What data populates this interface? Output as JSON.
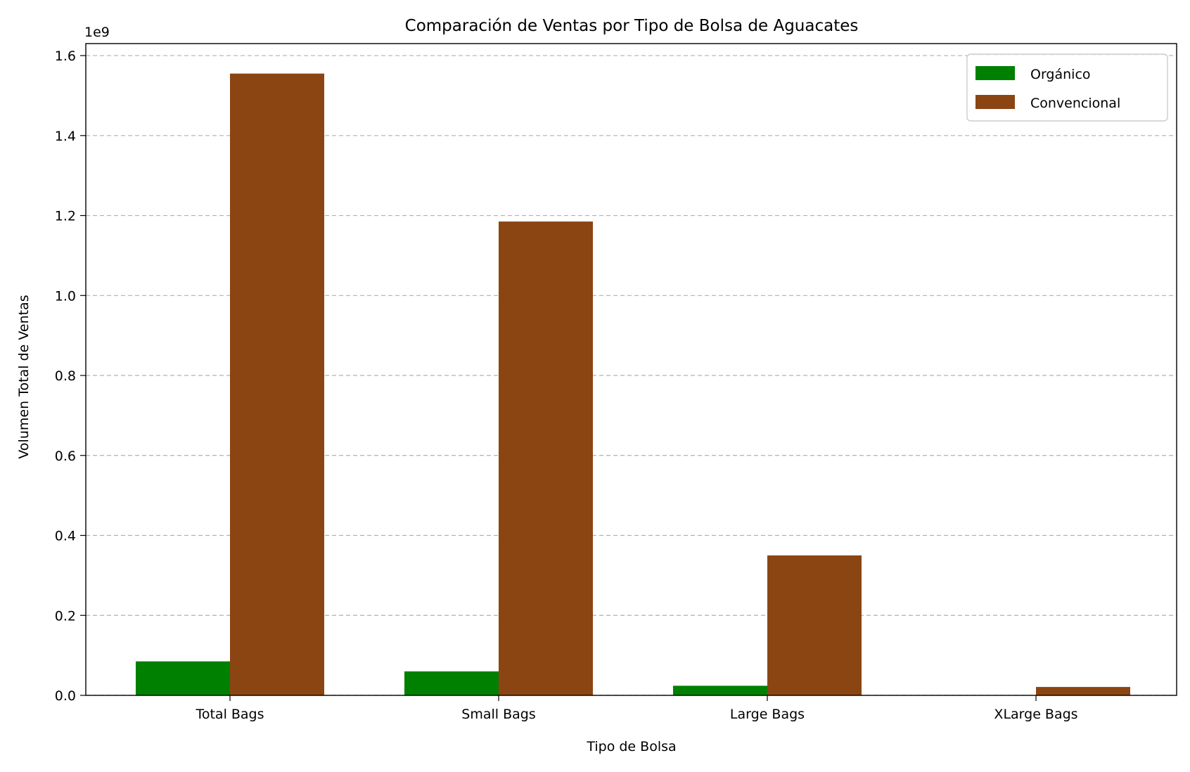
{
  "chart_data": {
    "type": "bar",
    "title": "Comparación de Ventas por Tipo de Bolsa de Aguacates",
    "xlabel": "Tipo de Bolsa",
    "ylabel": "Volumen Total de Ventas",
    "y_offset_label": "1e9",
    "categories": [
      "Total Bags",
      "Small Bags",
      "Large Bags",
      "XLarge Bags"
    ],
    "series": [
      {
        "name": "Orgánico",
        "color": "#008000",
        "values": [
          85000000,
          60000000,
          24000000,
          800000
        ]
      },
      {
        "name": "Convencional",
        "color": "#8b4513",
        "values": [
          1555000000,
          1185000000,
          350000000,
          21000000
        ]
      }
    ],
    "ylim": [
      0,
      1630000000
    ],
    "yticks": [
      0,
      200000000,
      400000000,
      600000000,
      800000000,
      1000000000,
      1200000000,
      1400000000,
      1600000000
    ],
    "ytick_labels": [
      "0.0",
      "0.2",
      "0.4",
      "0.6",
      "0.8",
      "1.0",
      "1.2",
      "1.4",
      "1.6"
    ],
    "grid": "y-dashed",
    "legend_position": "top-right"
  }
}
